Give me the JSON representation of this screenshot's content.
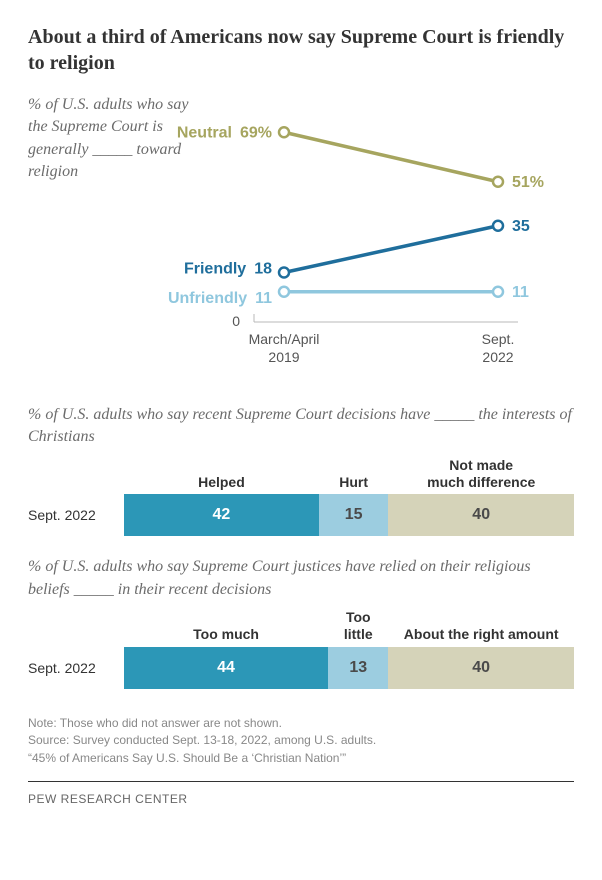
{
  "title": "About a third of Americans now say Supreme Court is friendly to religion",
  "slope": {
    "subtitle_html": "% of U.S. adults who say the Supreme Court is generally _____ toward religion",
    "x_labels": {
      "left_top": "March/April",
      "left_bottom": "2019",
      "right_top": "Sept.",
      "right_bottom": "2022"
    },
    "zero_label": "0",
    "ymax": 80,
    "series": [
      {
        "name": "Neutral",
        "color": "#a6a55f",
        "v1": 69,
        "v2": 51,
        "v1_label": "69%",
        "v2_label": "51%"
      },
      {
        "name": "Friendly",
        "color": "#1f6e9c",
        "v1": 18,
        "v2": 35,
        "v1_label": "18",
        "v2_label": "35"
      },
      {
        "name": "Unfriendly",
        "color": "#8fc7de",
        "v1": 11,
        "v2": 11,
        "v1_label": "11",
        "v2_label": "11"
      }
    ],
    "stroke_width": 3.5,
    "marker_r": 5
  },
  "bar1": {
    "title": "% of U.S. adults who say recent Supreme Court decisions have _____ the interests of Christians",
    "row_label": "Sept. 2022",
    "segments": [
      {
        "header": "Helped",
        "value": 42,
        "color": "#2c97b7",
        "text_color": "#ffffff"
      },
      {
        "header": "Hurt",
        "value": 15,
        "color": "#9ccde0",
        "text_color": "#4a4a4a"
      },
      {
        "header": "Not made\nmuch difference",
        "value": 40,
        "color": "#d5d3b9",
        "text_color": "#4a4a4a"
      }
    ],
    "track_total": 97
  },
  "bar2": {
    "title": "% of U.S. adults who say Supreme Court justices have relied on their religious beliefs _____ in their recent decisions",
    "row_label": "Sept. 2022",
    "segments": [
      {
        "header": "Too much",
        "value": 44,
        "color": "#2c97b7",
        "text_color": "#ffffff"
      },
      {
        "header": "Too\nlittle",
        "value": 13,
        "color": "#9ccde0",
        "text_color": "#4a4a4a"
      },
      {
        "header": "About the right amount",
        "value": 40,
        "color": "#d5d3b9",
        "text_color": "#4a4a4a"
      }
    ],
    "track_total": 97
  },
  "notes": {
    "line1": "Note: Those who did not answer are not shown.",
    "line2": "Source: Survey conducted Sept. 13-18, 2022, among U.S. adults.",
    "line3": "“45% of Americans Say U.S. Should Be a ‘Christian Nation’”"
  },
  "footer": "PEW RESEARCH CENTER"
}
